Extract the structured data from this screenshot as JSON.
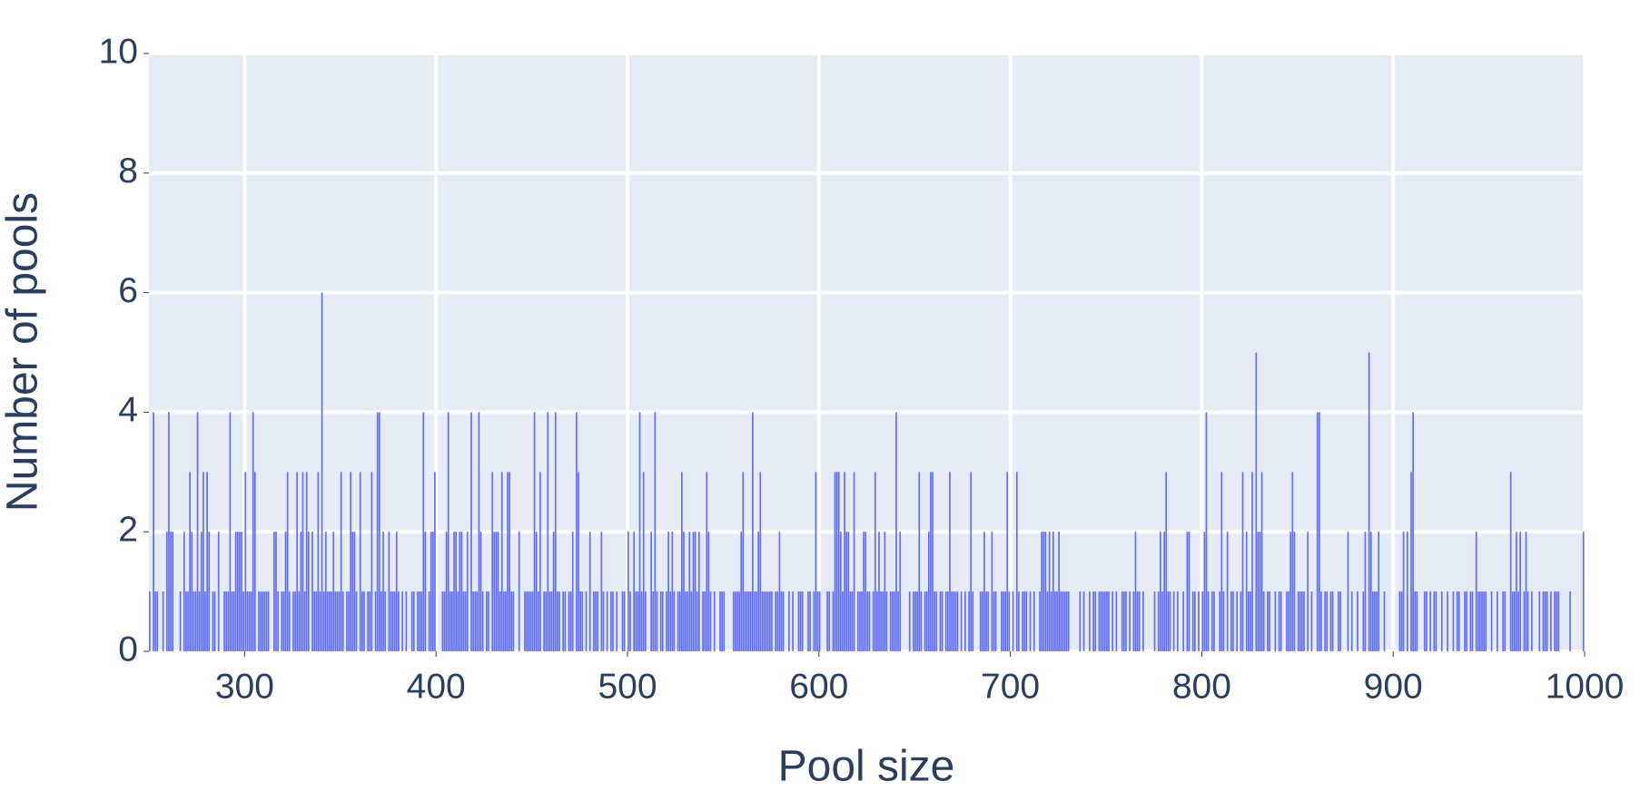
{
  "chart_data": {
    "type": "histogram",
    "xlabel": "Pool size",
    "ylabel": "Number of pools",
    "color": "#636efa",
    "background": "#e5ecf6",
    "grid": true,
    "xlim": [
      250,
      1000
    ],
    "ylim": [
      0,
      10
    ],
    "xticks": [
      300,
      400,
      500,
      600,
      700,
      800,
      900,
      1000
    ],
    "yticks": [
      0,
      2,
      4,
      6,
      8,
      10
    ],
    "bins": [
      250,
      251,
      252,
      253,
      254,
      255,
      256,
      257,
      258,
      259,
      260,
      261,
      262,
      263,
      264,
      265,
      266,
      267,
      268,
      269,
      270,
      271,
      272,
      273,
      274,
      275,
      276,
      277,
      278,
      279,
      280,
      281,
      282,
      283,
      284,
      285,
      286,
      287,
      288,
      289,
      290,
      291,
      292,
      293,
      294,
      295,
      296,
      297,
      298,
      299,
      300,
      301,
      302,
      303,
      304,
      305,
      306,
      307,
      308,
      309,
      310,
      311,
      312,
      313,
      314,
      315,
      316,
      317,
      318,
      319,
      320,
      321,
      322,
      323,
      324,
      325,
      326,
      327,
      328,
      329,
      330,
      331,
      332,
      333,
      334,
      335,
      336,
      337,
      338,
      339,
      340,
      341,
      342,
      343,
      344,
      345,
      346,
      347,
      348,
      349,
      350,
      351,
      352,
      353,
      354,
      355,
      356,
      357,
      358,
      359,
      360,
      361,
      362,
      363,
      364,
      365,
      366,
      367,
      368,
      369,
      370,
      371,
      372,
      373,
      374,
      375,
      376,
      377,
      378,
      379,
      380,
      381,
      382,
      383,
      384,
      385,
      386,
      387,
      388,
      389,
      390,
      391,
      392,
      393,
      394,
      395,
      396,
      397,
      398,
      399,
      400,
      401,
      402,
      403,
      404,
      405,
      406,
      407,
      408,
      409,
      410,
      411,
      412,
      413,
      414,
      415,
      416,
      417,
      418,
      419,
      420,
      421,
      422,
      423,
      424,
      425,
      426,
      427,
      428,
      429,
      430,
      431,
      432,
      433,
      434,
      435,
      436,
      437,
      438,
      439,
      440,
      441,
      442,
      443,
      444,
      445,
      446,
      447,
      448,
      449,
      450,
      451,
      452,
      453,
      454,
      455,
      456,
      457,
      458,
      459,
      460,
      461,
      462,
      463,
      464,
      465,
      466,
      467,
      468,
      469,
      470,
      471,
      472,
      473,
      474,
      475,
      476,
      477,
      478,
      479,
      480,
      481,
      482,
      483,
      484,
      485,
      486,
      487,
      488,
      489,
      490,
      491,
      492,
      493,
      494,
      495,
      496,
      497,
      498,
      499,
      500,
      501,
      502,
      503,
      504,
      505,
      506,
      507,
      508,
      509,
      510,
      511,
      512,
      513,
      514,
      515,
      516,
      517,
      518,
      519,
      520,
      521,
      522,
      523,
      524,
      525,
      526,
      527,
      528,
      529,
      530,
      531,
      532,
      533,
      534,
      535,
      536,
      537,
      538,
      539,
      540,
      541,
      542,
      543,
      544,
      545,
      546,
      547,
      548,
      549,
      550,
      551,
      552,
      553,
      554,
      555,
      556,
      557,
      558,
      559,
      560,
      561,
      562,
      563,
      564,
      565,
      566,
      567,
      568,
      569,
      570,
      571,
      572,
      573,
      574,
      575,
      576,
      577,
      578,
      579,
      580,
      581,
      582,
      583,
      584,
      585,
      586,
      587,
      588,
      589,
      590,
      591,
      592,
      593,
      594,
      595,
      596,
      597,
      598,
      599,
      600,
      601,
      602,
      603,
      604,
      605,
      606,
      607,
      608,
      609,
      610,
      611,
      612,
      613,
      614,
      615,
      616,
      617,
      618,
      619,
      620,
      621,
      622,
      623,
      624,
      625,
      626,
      627,
      628,
      629,
      630,
      631,
      632,
      633,
      634,
      635,
      636,
      637,
      638,
      639,
      640,
      641,
      642,
      643,
      644,
      645,
      646,
      647,
      648,
      649,
      650,
      651,
      652,
      653,
      654,
      655,
      656,
      657,
      658,
      659,
      660,
      661,
      662,
      663,
      664,
      665,
      666,
      667,
      668,
      669,
      670,
      671,
      672,
      673,
      674,
      675,
      676,
      677,
      678,
      679,
      680,
      681,
      682,
      683,
      684,
      685,
      686,
      687,
      688,
      689,
      690,
      691,
      692,
      693,
      694,
      695,
      696,
      697,
      698,
      699,
      700,
      701,
      702,
      703,
      704,
      705,
      706,
      707,
      708,
      709,
      710,
      711,
      712,
      713,
      714,
      715,
      716,
      717,
      718,
      719,
      720,
      721,
      722,
      723,
      724,
      725,
      726,
      727,
      728,
      729,
      730,
      731,
      732,
      733,
      734,
      735,
      736,
      737,
      738,
      739,
      740,
      741,
      742,
      743,
      744,
      745,
      746,
      747,
      748,
      749,
      750,
      751,
      752,
      753,
      754,
      755,
      756,
      757,
      758,
      759,
      760,
      761,
      762,
      763,
      764,
      765,
      766,
      767,
      768,
      769,
      770,
      771,
      772,
      773,
      774,
      775,
      776,
      777,
      778,
      779,
      780,
      781,
      782,
      783,
      784,
      785,
      786,
      787,
      788,
      789,
      790,
      791,
      792,
      793,
      794,
      795,
      796,
      797,
      798,
      799,
      800,
      801,
      802,
      803,
      804,
      805,
      806,
      807,
      808,
      809,
      810,
      811,
      812,
      813,
      814,
      815,
      816,
      817,
      818,
      819,
      820,
      821,
      822,
      823,
      824,
      825,
      826,
      827,
      828,
      829,
      830,
      831,
      832,
      833,
      834,
      835,
      836,
      837,
      838,
      839,
      840,
      841,
      842,
      843,
      844,
      845,
      846,
      847,
      848,
      849,
      850,
      851,
      852,
      853,
      854,
      855,
      856,
      857,
      858,
      859,
      860,
      861,
      862,
      863,
      864,
      865,
      866,
      867,
      868,
      869,
      870,
      871,
      872,
      873,
      874,
      875,
      876,
      877,
      878,
      879,
      880,
      881,
      882,
      883,
      884,
      885,
      886,
      887,
      888,
      889,
      890,
      891,
      892,
      893,
      894,
      895,
      896,
      897,
      898,
      899,
      900,
      901,
      902,
      903,
      904,
      905,
      906,
      907,
      908,
      909,
      910,
      911,
      912,
      913,
      914,
      915,
      916,
      917,
      918,
      919,
      920,
      921,
      922,
      923,
      924,
      925,
      926,
      927,
      928,
      929,
      930,
      931,
      932,
      933,
      934,
      935,
      936,
      937,
      938,
      939,
      940,
      941,
      942,
      943,
      944,
      945,
      946,
      947,
      948,
      949,
      950,
      951,
      952,
      953,
      954,
      955,
      956,
      957,
      958,
      959,
      960,
      961,
      962,
      963,
      964,
      965,
      966,
      967,
      968,
      969,
      970,
      971,
      972,
      973,
      974,
      975,
      976,
      977,
      978,
      979,
      980,
      981,
      982,
      983,
      984,
      985,
      986,
      987,
      988,
      989,
      990,
      991,
      992,
      993,
      994,
      995,
      996,
      997,
      998,
      999,
      1000
    ],
    "values": [
      1,
      0,
      4,
      1,
      1,
      0,
      0,
      1,
      0,
      2,
      4,
      2,
      2,
      0,
      0,
      0,
      1,
      0,
      2,
      1,
      1,
      3,
      2,
      1,
      1,
      4,
      1,
      2,
      3,
      1,
      3,
      2,
      0,
      1,
      1,
      0,
      2,
      0,
      0,
      1,
      1,
      1,
      4,
      1,
      1,
      2,
      2,
      2,
      2,
      1,
      3,
      1,
      1,
      1,
      4,
      3,
      0,
      1,
      1,
      1,
      1,
      1,
      1,
      0,
      0,
      2,
      2,
      1,
      0,
      1,
      1,
      2,
      3,
      1,
      0,
      1,
      1,
      3,
      1,
      2,
      3,
      1,
      3,
      2,
      0,
      2,
      1,
      1,
      3,
      1,
      6,
      1,
      2,
      1,
      1,
      1,
      2,
      1,
      1,
      1,
      3,
      1,
      0,
      1,
      1,
      3,
      2,
      2,
      1,
      0,
      3,
      1,
      1,
      0,
      1,
      1,
      3,
      0,
      1,
      4,
      4,
      1,
      2,
      1,
      0,
      2,
      1,
      1,
      1,
      2,
      1,
      0,
      1,
      0,
      1,
      0,
      0,
      1,
      1,
      0,
      1,
      1,
      1,
      4,
      2,
      0,
      1,
      2,
      2,
      3,
      0,
      0,
      0,
      1,
      1,
      2,
      4,
      1,
      1,
      2,
      2,
      1,
      2,
      2,
      1,
      1,
      2,
      0,
      4,
      1,
      1,
      1,
      4,
      2,
      1,
      0,
      1,
      1,
      0,
      3,
      2,
      2,
      2,
      1,
      3,
      1,
      1,
      3,
      3,
      1,
      1,
      0,
      0,
      2,
      0,
      0,
      1,
      1,
      1,
      1,
      1,
      4,
      2,
      1,
      3,
      0,
      1,
      1,
      4,
      1,
      1,
      2,
      4,
      1,
      1,
      0,
      1,
      1,
      0,
      1,
      1,
      2,
      0,
      4,
      3,
      1,
      1,
      0,
      1,
      0,
      2,
      0,
      1,
      1,
      1,
      0,
      2,
      1,
      0,
      1,
      0,
      1,
      1,
      0,
      1,
      0,
      0,
      1,
      1,
      0,
      2,
      1,
      0,
      2,
      1,
      1,
      4,
      1,
      3,
      1,
      0,
      0,
      2,
      1,
      4,
      1,
      0,
      1,
      1,
      0,
      1,
      2,
      1,
      2,
      1,
      0,
      1,
      1,
      3,
      2,
      1,
      1,
      2,
      1,
      2,
      2,
      1,
      2,
      0,
      1,
      1,
      3,
      2,
      1,
      0,
      1,
      0,
      0,
      1,
      1,
      1,
      0,
      0,
      0,
      0,
      1,
      1,
      1,
      1,
      2,
      3,
      1,
      1,
      1,
      1,
      4,
      1,
      1,
      2,
      3,
      1,
      1,
      1,
      1,
      1,
      1,
      0,
      1,
      1,
      2,
      1,
      1,
      0,
      0,
      1,
      0,
      1,
      0,
      0,
      1,
      1,
      1,
      0,
      0,
      1,
      1,
      0,
      1,
      3,
      1,
      1,
      0,
      0,
      0,
      1,
      1,
      0,
      1,
      3,
      3,
      3,
      2,
      1,
      3,
      2,
      2,
      1,
      1,
      3,
      0,
      1,
      1,
      1,
      2,
      2,
      1,
      1,
      0,
      1,
      3,
      1,
      2,
      1,
      1,
      2,
      1,
      0,
      1,
      1,
      1,
      4,
      1,
      2,
      0,
      0,
      0,
      0,
      1,
      0,
      1,
      1,
      1,
      3,
      1,
      0,
      1,
      1,
      2,
      3,
      3,
      1,
      1,
      0,
      1,
      1,
      0,
      1,
      1,
      3,
      1,
      1,
      1,
      1,
      0,
      1,
      0,
      1,
      0,
      1,
      3,
      1,
      0,
      0,
      0,
      1,
      1,
      2,
      1,
      1,
      0,
      2,
      1,
      1,
      0,
      0,
      1,
      1,
      1,
      3,
      1,
      0,
      1,
      0,
      3,
      1,
      0,
      1,
      1,
      1,
      0,
      1,
      0,
      1,
      0,
      0,
      1,
      2,
      2,
      2,
      1,
      2,
      1,
      2,
      1,
      1,
      2,
      1,
      1,
      1,
      1,
      1,
      0,
      0,
      0,
      0,
      0,
      1,
      0,
      1,
      0,
      0,
      1,
      0,
      1,
      1,
      0,
      1,
      1,
      1,
      1,
      1,
      1,
      0,
      1,
      0,
      1,
      0,
      0,
      1,
      1,
      1,
      0,
      1,
      0,
      1,
      2,
      1,
      1,
      0,
      1,
      0,
      0,
      0,
      0,
      0,
      1,
      0,
      1,
      2,
      1,
      2,
      3,
      1,
      1,
      0,
      1,
      0,
      1,
      0,
      0,
      1,
      0,
      2,
      2,
      0,
      1,
      1,
      0,
      1,
      0,
      1,
      2,
      4,
      1,
      0,
      1,
      1,
      0,
      0,
      1,
      3,
      1,
      0,
      2,
      0,
      1,
      1,
      0,
      1,
      0,
      1,
      3,
      0,
      2,
      1,
      1,
      3,
      0,
      5,
      2,
      2,
      3,
      1,
      0,
      1,
      1,
      0,
      0,
      1,
      0,
      1,
      1,
      0,
      0,
      1,
      1,
      2,
      3,
      2,
      0,
      1,
      1,
      1,
      1,
      0,
      2,
      0,
      1,
      0,
      0,
      4,
      4,
      1,
      0,
      1,
      1,
      0,
      1,
      1,
      0,
      0,
      1,
      1,
      0,
      0,
      0,
      2,
      0,
      1,
      0,
      0,
      1,
      0,
      0,
      1,
      2,
      0,
      5,
      2,
      1,
      1,
      1,
      2,
      0,
      0,
      1,
      0,
      0,
      0,
      0,
      0,
      0,
      0,
      1,
      1,
      2,
      0,
      2,
      0,
      3,
      4,
      1,
      1,
      0,
      0,
      0,
      1,
      1,
      0,
      1,
      0,
      1,
      1,
      0,
      0,
      1,
      0,
      0,
      1,
      0,
      0,
      1,
      0,
      1,
      1,
      0,
      0,
      1,
      1,
      0,
      1,
      1,
      0,
      2,
      1,
      1,
      1,
      1,
      1,
      0,
      0,
      1,
      0,
      0,
      1,
      0,
      0,
      1,
      1,
      0,
      0,
      3,
      1,
      1,
      2,
      1,
      2,
      0,
      1,
      2,
      1,
      0,
      1,
      0,
      0,
      0,
      1,
      0,
      1,
      1,
      1,
      0,
      1,
      0,
      1,
      1,
      1,
      0,
      0,
      0,
      0,
      0,
      1,
      0,
      0,
      0,
      0,
      0,
      0,
      2
    ]
  }
}
